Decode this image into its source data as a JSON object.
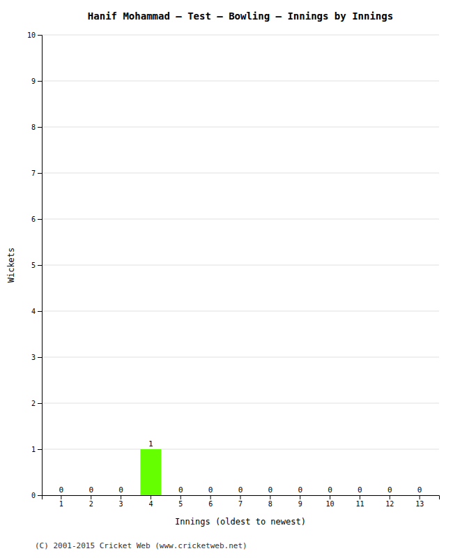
{
  "chart_data": {
    "type": "bar",
    "title": "Hanif Mohammad – Test – Bowling – Innings by Innings",
    "xlabel": "Innings (oldest to newest)",
    "ylabel": "Wickets",
    "categories": [
      "1",
      "2",
      "3",
      "4",
      "5",
      "6",
      "7",
      "8",
      "9",
      "10",
      "11",
      "12",
      "13"
    ],
    "values": [
      0,
      0,
      0,
      1,
      0,
      0,
      0,
      0,
      0,
      0,
      0,
      0,
      0
    ],
    "color": "#66ff00",
    "ylim": [
      0,
      10
    ],
    "yticks": [
      0,
      1,
      2,
      3,
      4,
      5,
      6,
      7,
      8,
      9,
      10
    ],
    "grid": true,
    "data_labels": true,
    "annotations": [
      "(C) 2001-2015 Cricket Web (www.cricketweb.net)"
    ]
  }
}
